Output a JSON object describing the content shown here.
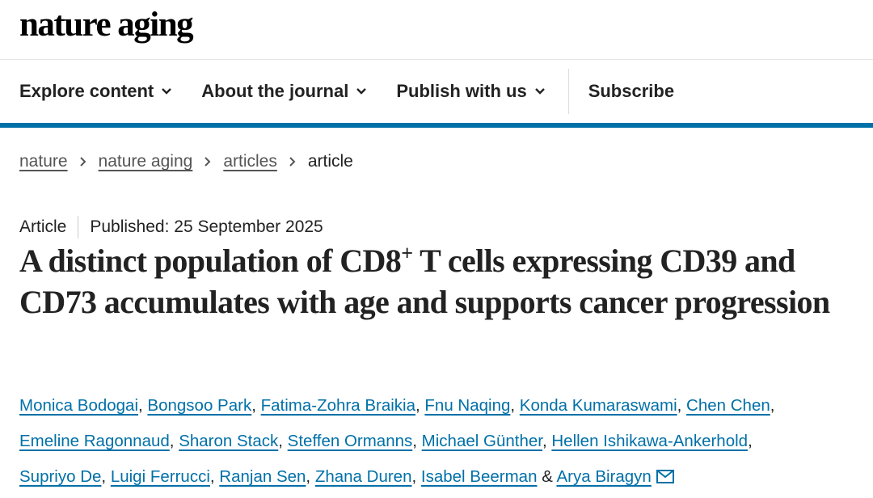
{
  "header": {
    "logo": "nature aging"
  },
  "nav": {
    "items": [
      "Explore content",
      "About the journal",
      "Publish with us"
    ],
    "subscribe": "Subscribe"
  },
  "breadcrumbs": {
    "links": [
      "nature",
      "nature aging",
      "articles"
    ],
    "current": "article"
  },
  "article": {
    "type": "Article",
    "published": "Published: 25 September 2025",
    "title": {
      "main": "A distinct population of CD8",
      "superscript": "+",
      "rest": " T cells expressing CD39 and CD73 accumulates with age and supports cancer progression"
    },
    "authors": [
      "Monica Bodogai",
      "Bongsoo Park",
      "Fatima-Zohra Braikia",
      "Fnu Naqing",
      "Konda Kumaraswami",
      "Chen Chen",
      "Emeline Ragonnaud",
      "Sharon Stack",
      "Steffen Ormanns",
      "Michael Günther",
      "Hellen Ishikawa-Ankerhold",
      "Supriyo De",
      "Luigi Ferrucci",
      "Ranjan Sen",
      "Zhana Duren",
      "Isabel Beerman",
      "Arya Biragyn"
    ],
    "separator": ",",
    "conjunction": "&"
  }
}
